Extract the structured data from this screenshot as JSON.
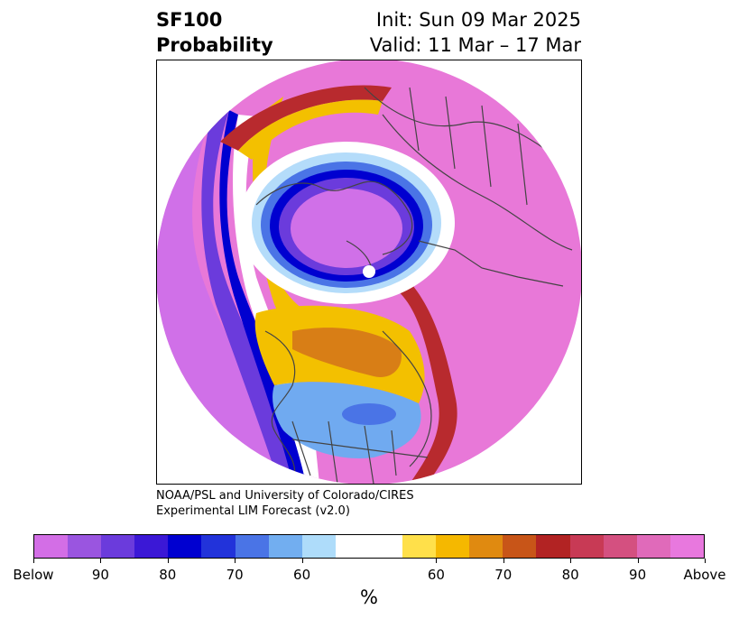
{
  "title": {
    "left_line1": "SF100",
    "left_line2": "Probability",
    "right_line1": "Init: Sun 09 Mar 2025",
    "right_line2": "Valid: 11 Mar – 17 Mar"
  },
  "credit": {
    "line1": "NOAA/PSL and University of Colorado/CIRES",
    "line2": "Experimental LIM Forecast (v2.0)"
  },
  "colorbar": {
    "unit": "%",
    "colors": [
      "#d36ee6",
      "#9a55e0",
      "#6b3bdc",
      "#3b18d6",
      "#0000d0",
      "#2233da",
      "#4a74e6",
      "#72aef0",
      "#aedcfa",
      "#ffffff",
      "#ffffff",
      "#ffe04a",
      "#f5b800",
      "#e08a10",
      "#c85518",
      "#b22323",
      "#c83a55",
      "#d45080",
      "#e06aba",
      "#e878de"
    ],
    "tick_labels": [
      "Below",
      "90",
      "80",
      "70",
      "60",
      "60",
      "70",
      "80",
      "90",
      "Above"
    ]
  },
  "map": {
    "projection": "north polar stereographic",
    "variable": "100 hPa stream function probability",
    "colors": {
      "above": "#e878d8",
      "above_mid": "#d8509c",
      "above_low": "#b82a2e",
      "warm_orange": "#d87e16",
      "warm_gold": "#f3c000",
      "warm_yellow": "#ffe650",
      "neutral": "#ffffff",
      "cool_pale": "#b4dcfa",
      "cool_light": "#70aaf0",
      "cool_mid": "#4a74e6",
      "cool_blue": "#0000d0",
      "cool_violet": "#6b3bdc",
      "below": "#d070e8",
      "coast": "#444444"
    }
  }
}
